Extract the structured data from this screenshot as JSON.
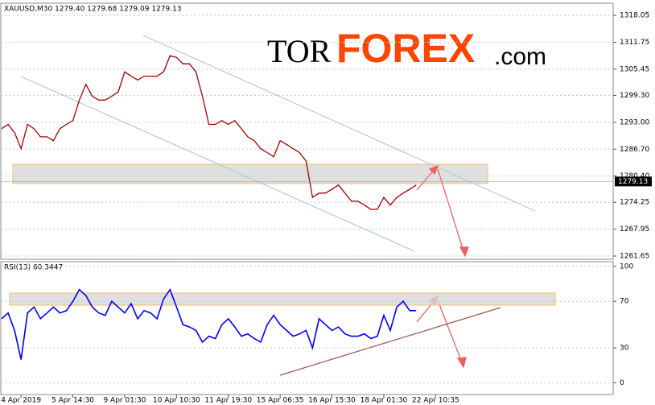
{
  "chart_data": [
    {
      "type": "line",
      "title": "XAUUSD,M30  1279.40 1279.68 1279.09 1279.13",
      "last_price": 1279.13,
      "categories": [
        null,
        null,
        null,
        "4 Apr 2019",
        null,
        null,
        null,
        null,
        null,
        null,
        null,
        "5 Apr 14:30",
        null,
        null,
        null,
        null,
        null,
        null,
        null,
        "9 Apr 01:30",
        null,
        null,
        null,
        null,
        null,
        null,
        null,
        "10 Apr 10:30",
        null,
        null,
        null,
        null,
        null,
        null,
        null,
        "11 Apr 19:30",
        null,
        null,
        null,
        null,
        null,
        null,
        null,
        "15 Apr 06:35",
        null,
        null,
        null,
        null,
        null,
        null,
        null,
        "16 Apr 15:30",
        null,
        null,
        null,
        null,
        null,
        null,
        null,
        "18 Apr 01:30",
        null,
        null,
        null,
        null,
        null,
        null,
        null,
        "22 Apr 10:35"
      ],
      "series": [
        {
          "name": "XAUUSD",
          "color": "#a00000",
          "values": [
            1291.5,
            1292.5,
            1290.6,
            1286.8,
            1292.5,
            1291.5,
            1289.6,
            1289.6,
            1288.7,
            1291.5,
            1292.5,
            1293.4,
            1298.2,
            1301.9,
            1299.1,
            1298.2,
            1298.2,
            1299.1,
            1300.1,
            1304.8,
            1303.8,
            1302.9,
            1303.8,
            1303.8,
            1303.8,
            1304.8,
            1308.6,
            1308.2,
            1306.7,
            1306.7,
            1304.8,
            1299.1,
            1292.5,
            1292.5,
            1293.4,
            1292.5,
            1293.4,
            1291.5,
            1289.6,
            1288.7,
            1286.8,
            1285.9,
            1284.9,
            1288.7,
            1287.8,
            1286.8,
            1285.9,
            1283.9,
            1275.4,
            1276.4,
            1276.4,
            1277.3,
            1278.3,
            1276.4,
            1274.5,
            1274.5,
            1273.6,
            1272.6,
            1272.6,
            1275.4,
            1273.6,
            1275.4,
            1276.4,
            1277.3,
            1278.3,
            null,
            null,
            null
          ]
        }
      ],
      "ylim": [
        1260.9,
        1320.9
      ],
      "yticks": [
        1318.05,
        1311.75,
        1305.45,
        {
          "value": 1299.3,
          "label": "1299.30"
        },
        {
          "value": 1293,
          "label": "1293.00"
        },
        {
          "value": 1286.7,
          "label": "1286.70"
        },
        {
          "value": 1280.4,
          "label": "1280.40"
        },
        1274.25,
        1267.95,
        1261.65
      ],
      "grid": true
    },
    {
      "type": "line",
      "title": "RSI(13) 60.3447",
      "series": [
        {
          "name": "RSI(13)",
          "color": "#0000ff",
          "values": [
            55,
            60,
            45,
            20,
            60,
            65,
            55,
            60,
            65,
            60,
            62,
            70,
            80,
            75,
            65,
            60,
            58,
            70,
            65,
            60,
            68,
            55,
            62,
            60,
            55,
            72,
            80,
            65,
            50,
            48,
            45,
            35,
            40,
            38,
            50,
            55,
            48,
            40,
            42,
            38,
            35,
            50,
            58,
            50,
            45,
            40,
            42,
            45,
            30,
            55,
            50,
            45,
            48,
            42,
            40,
            40,
            42,
            38,
            40,
            58,
            45,
            65,
            70,
            62,
            62,
            null,
            null,
            null
          ]
        }
      ],
      "ylim": [
        -10,
        104
      ],
      "yticks": [
        100,
        70,
        30,
        0
      ],
      "grid": true
    }
  ],
  "watermark": {
    "part1": "TOR",
    "part2": "FOREX",
    "part3": ".com"
  }
}
